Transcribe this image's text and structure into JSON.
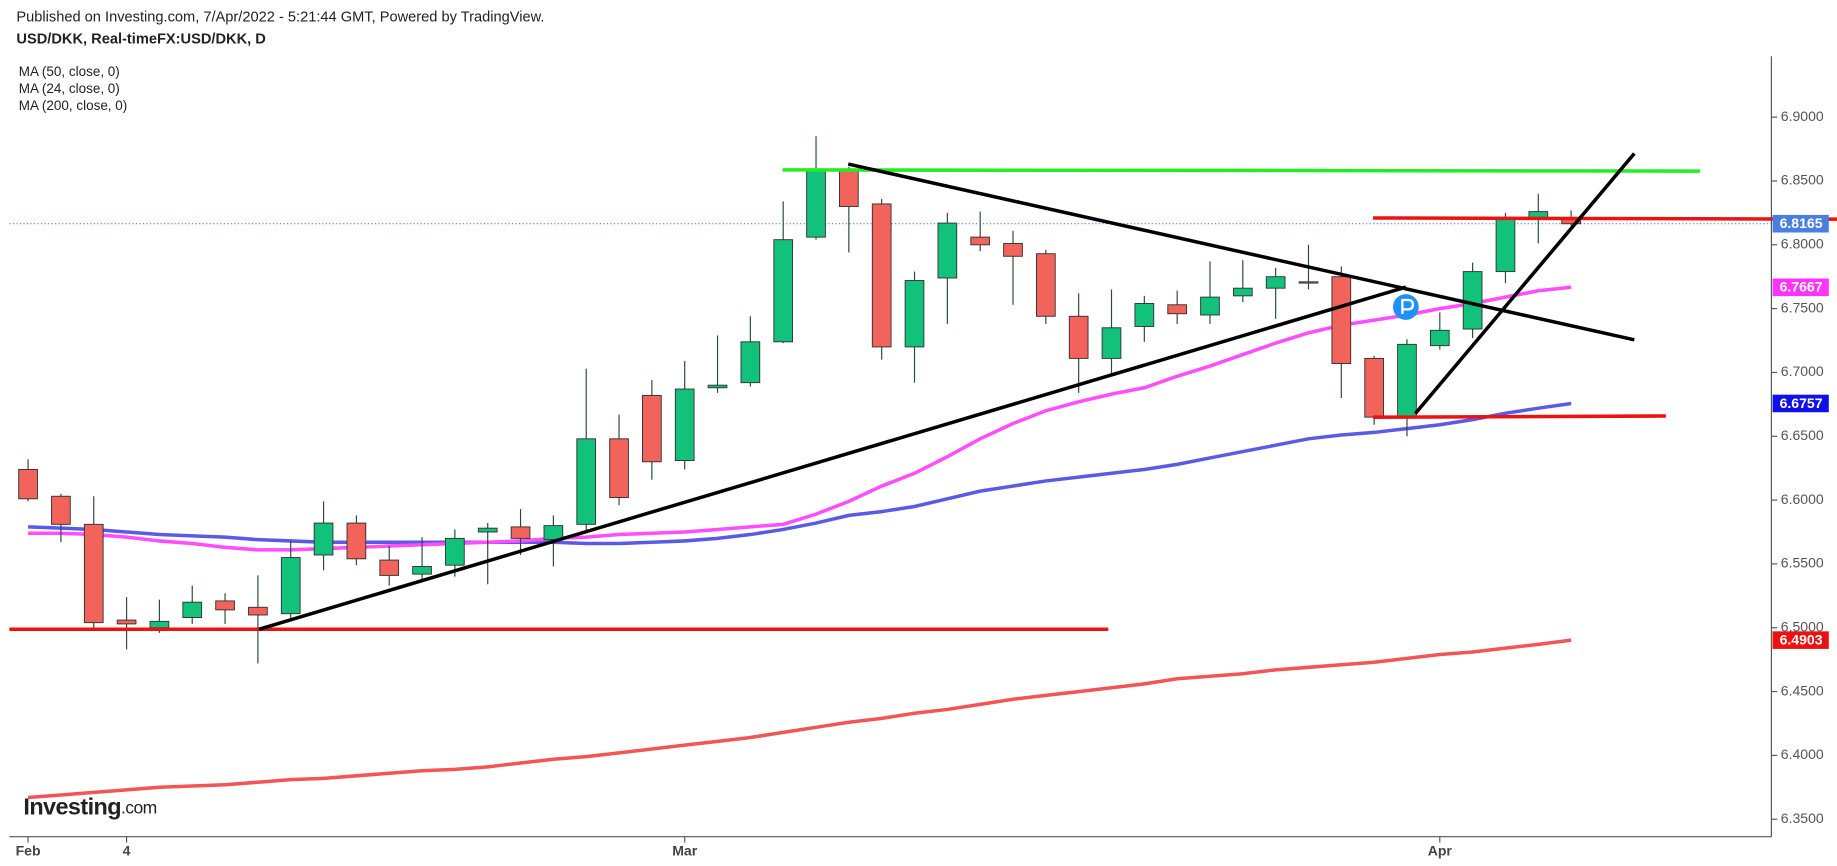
{
  "chart_data": {
    "type": "candlestick",
    "title": "Published on Investing.com, 7/Apr/2022 - 5:21:44 GMT, Powered by TradingView.",
    "subtitle": "USD/DKK, Real-timeFX:USD/DKK, D",
    "logo_main": "Investing",
    "logo_suffix": ".com",
    "categories": [
      "Feb",
      null,
      null,
      "4",
      null,
      null,
      null,
      null,
      null,
      null,
      null,
      null,
      null,
      null,
      null,
      null,
      null,
      null,
      null,
      null,
      "Mar",
      null,
      null,
      null,
      null,
      null,
      null,
      null,
      null,
      null,
      null,
      null,
      null,
      null,
      null,
      null,
      null,
      null,
      null,
      null,
      null,
      null,
      null,
      "Apr",
      null,
      null,
      null,
      null
    ],
    "xlim": [
      -0.57,
      53.1
    ],
    "ylim": [
      6.3363,
      6.9477
    ],
    "yticks": [
      {
        "value": 6.35,
        "label": "6.3500"
      },
      {
        "value": 6.4,
        "label": "6.4000"
      },
      {
        "value": 6.45,
        "label": "6.4500"
      },
      {
        "value": 6.5,
        "label": "6.5000"
      },
      {
        "value": 6.55,
        "label": "6.5500"
      },
      {
        "value": 6.6,
        "label": "6.6000"
      },
      {
        "value": 6.65,
        "label": "6.6500"
      },
      {
        "value": 6.7,
        "label": "6.7000"
      },
      {
        "value": 6.75,
        "label": "6.7500"
      },
      {
        "value": 6.8,
        "label": "6.8000"
      },
      {
        "value": 6.85,
        "label": "6.8500"
      },
      {
        "value": 6.9,
        "label": "6.9000"
      }
    ],
    "up_color": "#13c27a",
    "down_color": "#f2635c",
    "ohlc": {
      "open": [
        6.624,
        6.603,
        6.581,
        6.506,
        6.5,
        6.508,
        6.521,
        6.516,
        6.511,
        6.557,
        6.582,
        6.553,
        6.542,
        6.549,
        6.575,
        6.579,
        6.569,
        6.581,
        6.648,
        6.682,
        6.631,
        6.688,
        6.692,
        6.724,
        6.806,
        6.858,
        6.832,
        6.72,
        6.774,
        6.806,
        6.801,
        6.793,
        6.744,
        6.711,
        6.736,
        6.753,
        6.745,
        6.76,
        6.766,
        6.771,
        6.775,
        6.711,
        6.665,
        6.721,
        6.734,
        6.779,
        6.821,
        6.821
      ],
      "high": [
        6.632,
        6.605,
        6.603,
        6.524,
        6.522,
        6.533,
        6.527,
        6.541,
        6.568,
        6.599,
        6.588,
        6.564,
        6.571,
        6.577,
        6.582,
        6.593,
        6.588,
        6.703,
        6.667,
        6.694,
        6.709,
        6.729,
        6.744,
        6.834,
        6.885,
        6.861,
        6.836,
        6.779,
        6.825,
        6.826,
        6.811,
        6.796,
        6.762,
        6.765,
        6.76,
        6.764,
        6.787,
        6.788,
        6.782,
        6.8,
        6.783,
        6.713,
        6.726,
        6.747,
        6.786,
        6.825,
        6.84,
        6.827
      ],
      "low": [
        6.599,
        6.567,
        6.499,
        6.483,
        6.496,
        6.503,
        6.503,
        6.472,
        6.507,
        6.545,
        6.549,
        6.533,
        6.536,
        6.54,
        6.534,
        6.557,
        6.548,
        6.574,
        6.596,
        6.616,
        6.624,
        6.684,
        6.689,
        6.723,
        6.804,
        6.794,
        6.71,
        6.692,
        6.738,
        6.795,
        6.753,
        6.738,
        6.684,
        6.698,
        6.724,
        6.738,
        6.738,
        6.755,
        6.742,
        6.765,
        6.68,
        6.659,
        6.65,
        6.718,
        6.727,
        6.77,
        6.801,
        6.815
      ],
      "close": [
        6.601,
        6.581,
        6.504,
        6.503,
        6.505,
        6.52,
        6.514,
        6.51,
        6.555,
        6.582,
        6.554,
        6.541,
        6.548,
        6.57,
        6.578,
        6.57,
        6.58,
        6.648,
        6.602,
        6.63,
        6.687,
        6.69,
        6.724,
        6.804,
        6.858,
        6.83,
        6.72,
        6.772,
        6.817,
        6.8,
        6.791,
        6.744,
        6.711,
        6.735,
        6.754,
        6.746,
        6.759,
        6.766,
        6.775,
        6.77,
        6.707,
        6.665,
        6.722,
        6.733,
        6.779,
        6.821,
        6.826,
        6.8165
      ]
    },
    "series": [
      {
        "name": "MA (50, close, 0)",
        "color": "#5a5ae6",
        "values": [
          6.579,
          6.578,
          6.577,
          6.575,
          6.573,
          6.572,
          6.571,
          6.569,
          6.568,
          6.567,
          6.567,
          6.567,
          6.567,
          6.567,
          6.567,
          6.567,
          6.567,
          6.566,
          6.566,
          6.567,
          6.568,
          6.57,
          6.573,
          6.577,
          6.582,
          6.588,
          6.591,
          6.595,
          6.601,
          6.607,
          6.611,
          6.615,
          6.618,
          6.621,
          6.624,
          6.628,
          6.633,
          6.638,
          6.643,
          6.648,
          6.651,
          6.653,
          6.656,
          6.659,
          6.663,
          6.668,
          6.672,
          6.6757
        ]
      },
      {
        "name": "MA (24, close, 0)",
        "color": "#ff4dff",
        "values": [
          6.574,
          6.574,
          6.573,
          6.571,
          6.568,
          6.566,
          6.563,
          6.561,
          6.561,
          6.562,
          6.563,
          6.564,
          6.565,
          6.566,
          6.567,
          6.568,
          6.57,
          6.571,
          6.573,
          6.574,
          6.575,
          6.577,
          6.579,
          6.581,
          6.589,
          6.599,
          6.611,
          6.621,
          6.634,
          6.648,
          6.66,
          6.67,
          6.677,
          6.683,
          6.688,
          6.697,
          6.705,
          6.714,
          6.723,
          6.731,
          6.737,
          6.741,
          6.745,
          6.75,
          6.754,
          6.759,
          6.764,
          6.7667
        ]
      },
      {
        "name": "MA (200, close, 0)",
        "color": "#f25555",
        "values": [
          6.367,
          6.369,
          6.371,
          6.373,
          6.375,
          6.376,
          6.377,
          6.379,
          6.381,
          6.382,
          6.384,
          6.386,
          6.388,
          6.389,
          6.391,
          6.394,
          6.397,
          6.399,
          6.402,
          6.405,
          6.408,
          6.411,
          6.414,
          6.418,
          6.422,
          6.426,
          6.429,
          6.433,
          6.436,
          6.44,
          6.444,
          6.447,
          6.45,
          6.453,
          6.456,
          6.46,
          6.462,
          6.464,
          6.467,
          6.469,
          6.471,
          6.473,
          6.476,
          6.479,
          6.481,
          6.484,
          6.487,
          6.4903
        ]
      }
    ],
    "price_tags": [
      {
        "value": 6.8165,
        "color": "#4a7fe0"
      },
      {
        "value": 6.7667,
        "color": "#ff33ff"
      },
      {
        "value": 6.6757,
        "color": "#1010e8"
      },
      {
        "value": 6.4903,
        "color": "#ee1111"
      }
    ]
  }
}
